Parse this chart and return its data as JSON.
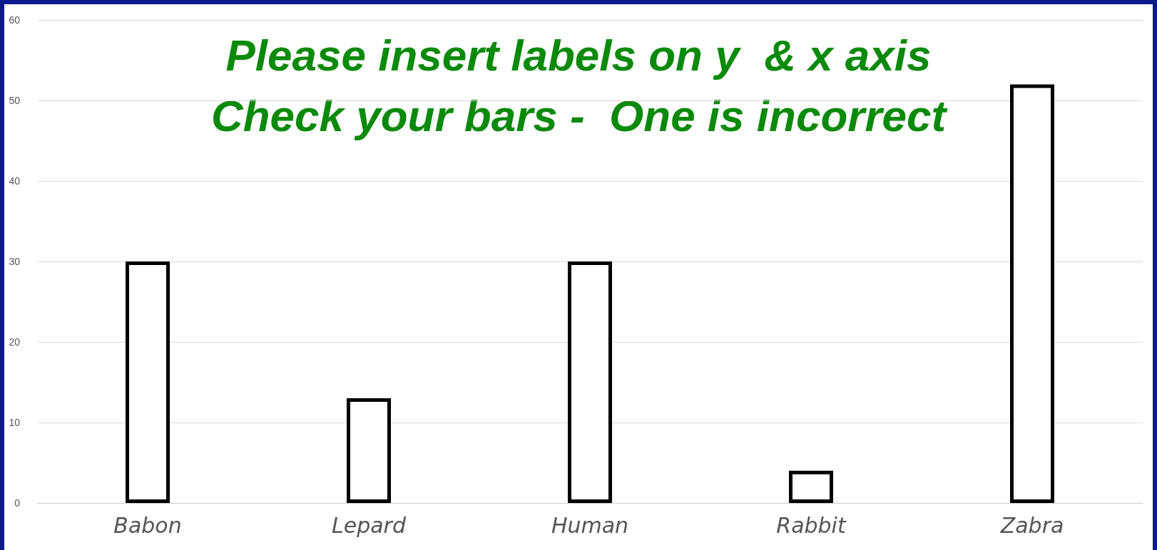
{
  "chart_data": {
    "type": "bar",
    "categories": [
      "Babon",
      "Lepard",
      "Human",
      "Rabbit",
      "Zabra"
    ],
    "values": [
      30,
      13,
      30,
      4,
      52
    ],
    "color": "#000000",
    "ylim": [
      0,
      60
    ],
    "yticks": [
      0,
      10,
      20,
      30,
      40,
      50,
      60
    ],
    "grid": "y",
    "annotations": [
      "Please insert labels on y  & x axis",
      "Check your bars -  One is incorrect"
    ]
  }
}
